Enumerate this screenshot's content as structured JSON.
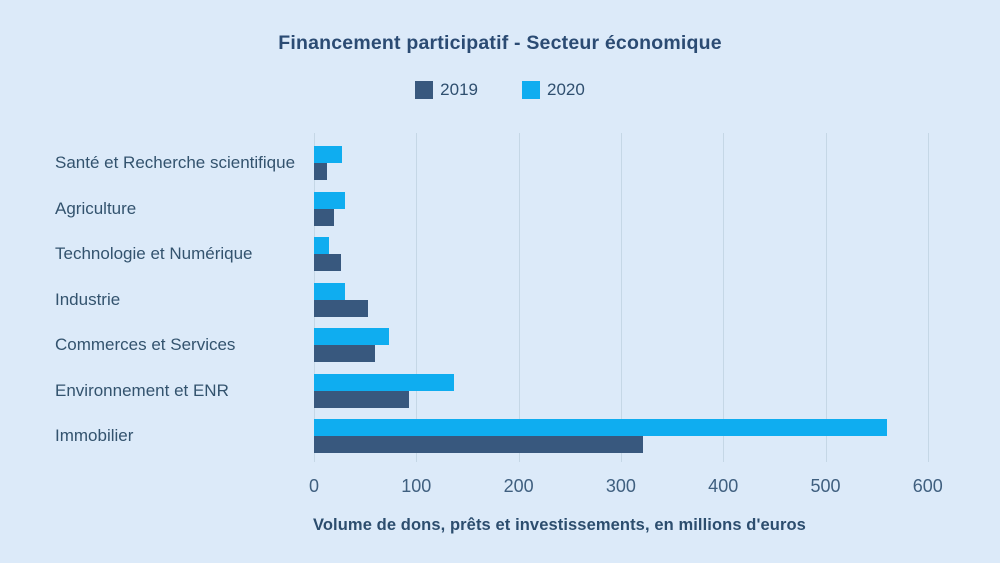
{
  "chart_data": {
    "type": "bar",
    "orientation": "horizontal",
    "title": "Financement participatif - Secteur économique",
    "categories": [
      "Santé et Recherche scientifique",
      "Agriculture",
      "Technologie et Numérique",
      "Industrie",
      "Commerces et Services",
      "Environnement et ENR",
      "Immobilier"
    ],
    "series": [
      {
        "name": "2019",
        "color": "#38587E",
        "values": [
          13,
          20,
          26,
          53,
          60,
          93,
          322
        ]
      },
      {
        "name": "2020",
        "color": "#0FADF0",
        "values": [
          27,
          30,
          15,
          30,
          73,
          137,
          560
        ]
      }
    ],
    "xlabel": "Volume de dons, prêts et investissements, en millions d'euros",
    "x_ticks": [
      0,
      100,
      200,
      300,
      400,
      500,
      600
    ],
    "xlim": [
      0,
      651
    ],
    "grid": true,
    "legend_position": "top",
    "unit": "millions d'euros"
  },
  "colors": {
    "background": "#DCEAF9",
    "title_text": "#2B4B73",
    "category_label_text": "#33536E",
    "tick_label_text": "#3F5F7F",
    "axis_label_text": "#2C4D6E",
    "gridline": "#C5D7E6",
    "series_2019": "#38587E",
    "series_2020": "#0FADF0"
  }
}
